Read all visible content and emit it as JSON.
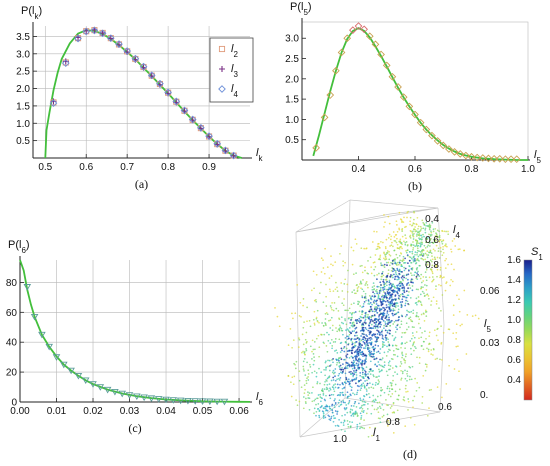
{
  "colors": {
    "curve": "#43bf3c",
    "series_l2": "#e09a7a",
    "series_l3": "#7a2f86",
    "series_l4": "#6d8fd8",
    "panel_b_marker": "#c9a050",
    "panel_b_top_marker": "#d96b6b",
    "panel_c_marker": "#5b9c9a"
  },
  "chart_data": [
    {
      "panel": "a",
      "type": "scatter",
      "caption": "(a)",
      "ylabel_base": "P(",
      "ylabel_var": "l",
      "ylabel_sub": "k",
      "ylabel_close": ")",
      "xlabel_var": "l",
      "xlabel_sub": "k",
      "xlim": [
        0.47,
        1.0
      ],
      "ylim": [
        0,
        3.8
      ],
      "xticks": [
        "0.5",
        "0.6",
        "0.7",
        "0.8",
        "0.9"
      ],
      "yticks": [
        "0.5",
        "1.0",
        "1.5",
        "2.0",
        "2.5",
        "3.0",
        "3.5"
      ],
      "grid": true,
      "legend_position": "right",
      "x": [
        0.52,
        0.55,
        0.58,
        0.6,
        0.62,
        0.64,
        0.66,
        0.68,
        0.7,
        0.72,
        0.74,
        0.76,
        0.78,
        0.8,
        0.82,
        0.84,
        0.86,
        0.88,
        0.9,
        0.92,
        0.94,
        0.96
      ],
      "series": [
        {
          "name": "l",
          "sub": "2",
          "marker": "square",
          "values": [
            1.6,
            2.75,
            3.45,
            3.65,
            3.68,
            3.6,
            3.45,
            3.27,
            3.07,
            2.85,
            2.62,
            2.37,
            2.13,
            1.88,
            1.62,
            1.36,
            1.1,
            0.86,
            0.62,
            0.4,
            0.21,
            0.07
          ]
        },
        {
          "name": "l",
          "sub": "3",
          "marker": "plus",
          "values": [
            1.63,
            2.78,
            3.47,
            3.66,
            3.69,
            3.6,
            3.44,
            3.26,
            3.05,
            2.83,
            2.6,
            2.36,
            2.11,
            1.86,
            1.6,
            1.35,
            1.09,
            0.85,
            0.61,
            0.39,
            0.2,
            0.06
          ]
        },
        {
          "name": "l",
          "sub": "4",
          "marker": "diamond",
          "values": [
            1.58,
            2.73,
            3.44,
            3.64,
            3.67,
            3.59,
            3.45,
            3.28,
            3.08,
            2.86,
            2.63,
            2.38,
            2.14,
            1.89,
            1.63,
            1.37,
            1.11,
            0.87,
            0.63,
            0.41,
            0.22,
            0.07
          ]
        }
      ],
      "curve": {
        "x": [
          0.5,
          0.503,
          0.51,
          0.52,
          0.53,
          0.54,
          0.56,
          0.58,
          0.6,
          0.62,
          0.64,
          0.66,
          0.68,
          0.7,
          0.72,
          0.74,
          0.76,
          0.78,
          0.8,
          0.82,
          0.84,
          0.86,
          0.88,
          0.9,
          0.92,
          0.94,
          0.96,
          0.98
        ],
        "y": [
          0.0,
          0.8,
          1.3,
          1.95,
          2.45,
          2.85,
          3.3,
          3.58,
          3.68,
          3.66,
          3.57,
          3.43,
          3.25,
          3.05,
          2.84,
          2.6,
          2.36,
          2.11,
          1.86,
          1.6,
          1.34,
          1.09,
          0.85,
          0.62,
          0.4,
          0.21,
          0.07,
          0.0
        ]
      }
    },
    {
      "panel": "b",
      "type": "scatter",
      "caption": "(b)",
      "ylabel_base": "P(",
      "ylabel_var": "l",
      "ylabel_sub": "5",
      "ylabel_close": ")",
      "xlabel_var": "l",
      "xlabel_sub": "5",
      "xlim": [
        0.2,
        1.0
      ],
      "ylim": [
        0,
        3.4
      ],
      "xticks": [
        "0.4",
        "0.6",
        "0.8",
        "1.0"
      ],
      "yticks": [
        "0.5",
        "1.0",
        "1.5",
        "2.0",
        "2.5",
        "3.0"
      ],
      "grid": false,
      "x": [
        0.25,
        0.28,
        0.3,
        0.32,
        0.34,
        0.36,
        0.38,
        0.4,
        0.42,
        0.44,
        0.46,
        0.48,
        0.5,
        0.52,
        0.54,
        0.56,
        0.58,
        0.6,
        0.62,
        0.64,
        0.66,
        0.68,
        0.7,
        0.72,
        0.74,
        0.76,
        0.78,
        0.8,
        0.82,
        0.84,
        0.86,
        0.88,
        0.9,
        0.92,
        0.94,
        0.96
      ],
      "values": [
        0.3,
        1.05,
        1.6,
        2.2,
        2.65,
        3.0,
        3.2,
        3.3,
        3.22,
        3.05,
        2.85,
        2.6,
        2.33,
        2.05,
        1.8,
        1.55,
        1.32,
        1.12,
        0.92,
        0.75,
        0.6,
        0.47,
        0.36,
        0.27,
        0.2,
        0.15,
        0.11,
        0.08,
        0.06,
        0.05,
        0.04,
        0.03,
        0.03,
        0.02,
        0.02,
        0.02
      ],
      "curve": {
        "x": [
          0.24,
          0.26,
          0.28,
          0.3,
          0.32,
          0.34,
          0.36,
          0.38,
          0.4,
          0.42,
          0.44,
          0.46,
          0.48,
          0.5,
          0.52,
          0.54,
          0.56,
          0.58,
          0.6,
          0.62,
          0.64,
          0.66,
          0.68,
          0.7,
          0.72,
          0.74,
          0.76,
          0.78,
          0.8,
          0.84,
          0.88,
          0.92,
          0.96,
          1.0
        ],
        "y": [
          0.1,
          0.6,
          1.15,
          1.7,
          2.2,
          2.65,
          2.98,
          3.18,
          3.25,
          3.18,
          3.02,
          2.8,
          2.56,
          2.3,
          2.04,
          1.78,
          1.54,
          1.32,
          1.11,
          0.92,
          0.75,
          0.61,
          0.48,
          0.37,
          0.28,
          0.21,
          0.15,
          0.11,
          0.08,
          0.04,
          0.02,
          0.01,
          0.0,
          0.0
        ]
      }
    },
    {
      "panel": "c",
      "type": "scatter",
      "caption": "(c)",
      "ylabel_base": "P(",
      "ylabel_var": "l",
      "ylabel_sub": "6",
      "ylabel_close": ")",
      "xlabel_var": "l",
      "xlabel_sub": "6",
      "xlim": [
        0.0,
        0.063
      ],
      "ylim": [
        0,
        95
      ],
      "xticks": [
        "0.00",
        "0.01",
        "0.02",
        "0.03",
        "0.04",
        "0.05",
        "0.06"
      ],
      "yticks": [
        "0",
        "20",
        "40",
        "60",
        "80"
      ],
      "grid": true,
      "x": [
        0.002,
        0.004,
        0.006,
        0.008,
        0.01,
        0.012,
        0.014,
        0.016,
        0.018,
        0.02,
        0.022,
        0.024,
        0.026,
        0.028,
        0.03,
        0.032,
        0.034,
        0.036,
        0.038,
        0.04,
        0.042,
        0.044,
        0.046,
        0.048,
        0.05,
        0.052,
        0.054,
        0.056
      ],
      "values": [
        77,
        57,
        45,
        37,
        30,
        25,
        21,
        17.5,
        14.5,
        12,
        10,
        8.2,
        6.8,
        5.6,
        4.6,
        3.8,
        3.1,
        2.5,
        2.0,
        1.6,
        1.3,
        1.0,
        0.8,
        0.6,
        0.5,
        0.4,
        0.3,
        0.25
      ],
      "curve": {
        "x": [
          0.0,
          0.001,
          0.002,
          0.003,
          0.004,
          0.006,
          0.008,
          0.01,
          0.012,
          0.014,
          0.016,
          0.018,
          0.02,
          0.024,
          0.028,
          0.032,
          0.036,
          0.04,
          0.045,
          0.05,
          0.055,
          0.06,
          0.063
        ],
        "y": [
          95,
          88,
          75,
          65,
          57,
          45,
          37,
          30.5,
          25,
          21,
          17.5,
          14.5,
          12,
          8.3,
          5.7,
          3.9,
          2.6,
          1.7,
          1.0,
          0.5,
          0.3,
          0.15,
          0.1
        ]
      }
    },
    {
      "panel": "d",
      "type": "scatter3d",
      "caption": "(d)",
      "axis_l4_var": "l",
      "axis_l4_sub": "4",
      "axis_l4_ticks": [
        "0.4",
        "0.6",
        "0.8"
      ],
      "axis_l5_var": "l",
      "axis_l5_sub": "5",
      "axis_l5_ticks": [
        "0.06",
        "0.03",
        "0."
      ],
      "axis_l1_var": "l",
      "axis_l1_sub": "1",
      "axis_l1_ticks": [
        "1.0",
        "0.8",
        "0.6"
      ],
      "colorbar_var": "S",
      "colorbar_sub": "1",
      "colorbar_range": [
        0.2,
        1.6
      ],
      "colorbar_ticks": [
        "1.6",
        "1.4",
        "1.2",
        "1.0",
        "0.8",
        "0.6",
        "0.4"
      ]
    }
  ]
}
